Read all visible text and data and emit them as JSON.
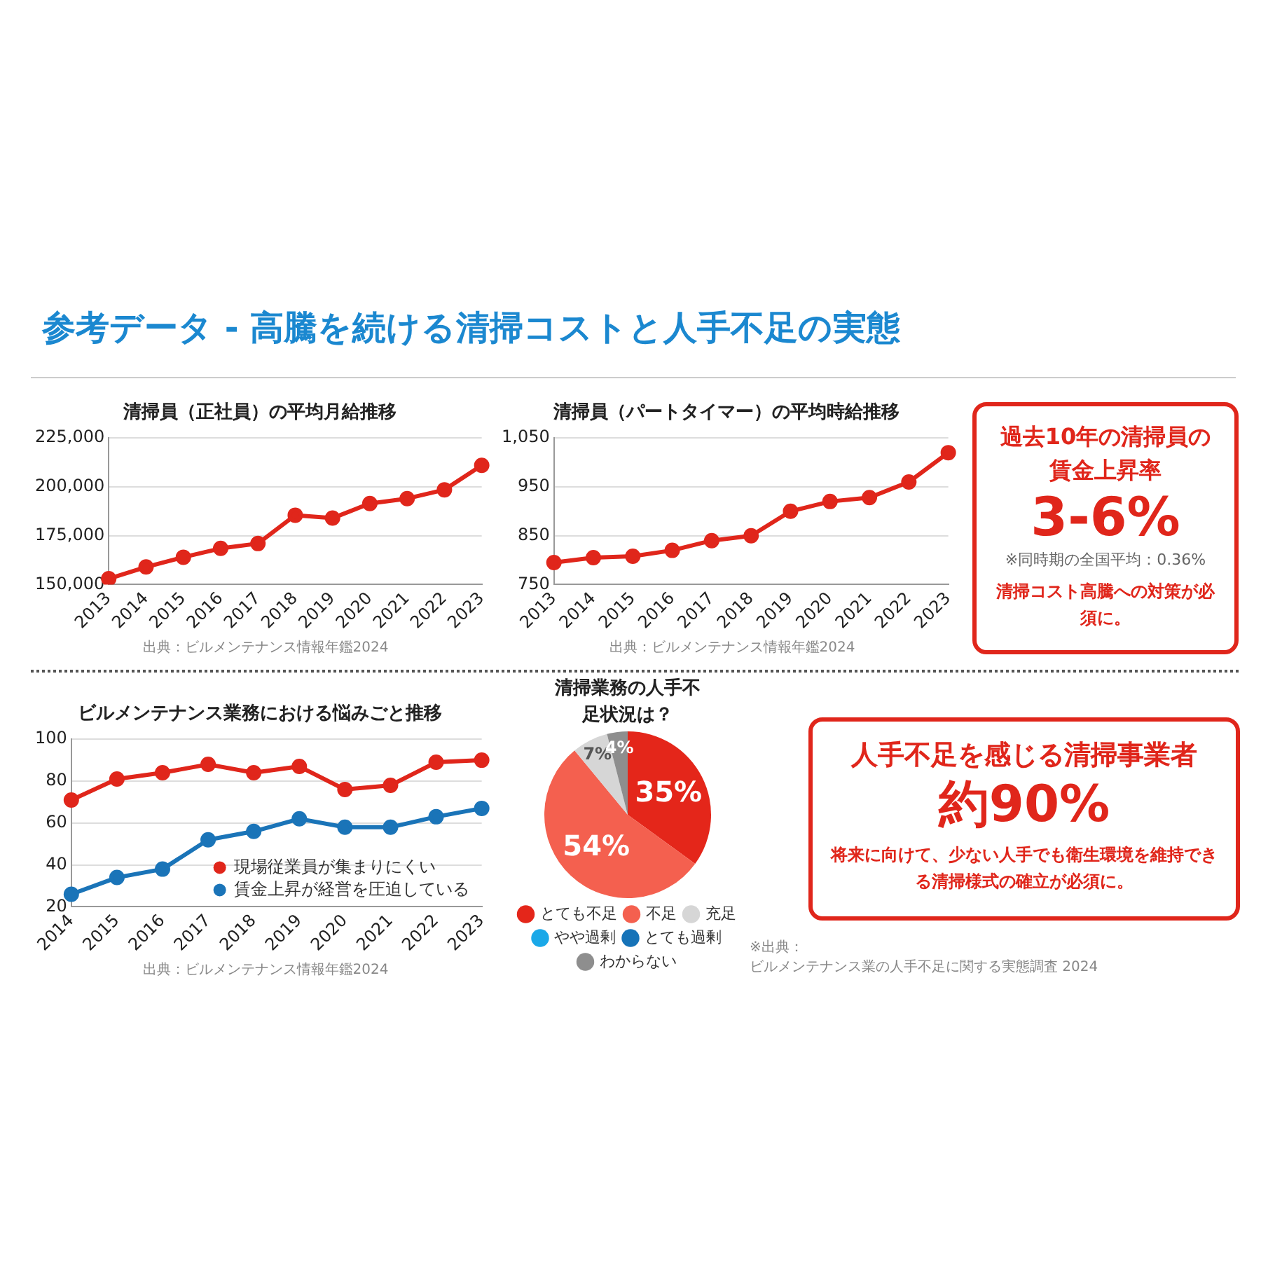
{
  "chart_data": [
    {
      "type": "other",
      "title": "参考データ - 高騰を続ける清掃コストと人手不足の実態"
    },
    {
      "type": "line",
      "title": "清掃員（正社員）の平均月給推移",
      "categories": [
        "2013",
        "2014",
        "2015",
        "2016",
        "2017",
        "2018",
        "2019",
        "2020",
        "2021",
        "2022",
        "2023"
      ],
      "series": [
        {
          "color": "#e0261b",
          "values": [
            153000,
            159000,
            164000,
            168500,
            171000,
            185500,
            184000,
            191500,
            194000,
            198500,
            211000
          ]
        }
      ],
      "ylim": [
        150000,
        225000
      ],
      "yticks": [
        {
          "value": 150000,
          "label": "150,000"
        },
        {
          "value": 175000,
          "label": "175,000"
        },
        {
          "value": 200000,
          "label": "200,000"
        },
        {
          "value": 225000,
          "label": "225,000"
        }
      ],
      "grid": "y",
      "marker": "circle",
      "annotations": [
        "出典：ビルメンテナンス情報年鑑2024"
      ]
    },
    {
      "type": "line",
      "title": "清掃員（パートタイマー）の平均時給推移",
      "categories": [
        "2013",
        "2014",
        "2015",
        "2016",
        "2017",
        "2018",
        "2019",
        "2020",
        "2021",
        "2022",
        "2023"
      ],
      "series": [
        {
          "color": "#e0261b",
          "values": [
            795,
            805,
            808,
            820,
            840,
            850,
            900,
            920,
            928,
            960,
            1020
          ]
        }
      ],
      "ylim": [
        750,
        1050
      ],
      "yticks": [
        750,
        850,
        950,
        {
          "value": 1050,
          "label": "1,050"
        }
      ],
      "grid": "y",
      "marker": "circle",
      "annotations": [
        "出典：ビルメンテナンス情報年鑑2024"
      ]
    },
    {
      "type": "other",
      "title": "過去10年の清掃員の賃金上昇率",
      "annotations": [
        "3-6%",
        "※同時期の全国平均：0.36%",
        "清掃コスト高騰への対策が必須に。"
      ]
    },
    {
      "type": "line",
      "title": "ビルメンテナンス業務における悩みごと推移",
      "categories": [
        "2014",
        "2015",
        "2016",
        "2017",
        "2018",
        "2019",
        "2020",
        "2021",
        "2022",
        "2023"
      ],
      "series": [
        {
          "name": "現場従業員が集まりにくい",
          "color": "#e0261b",
          "values": [
            71,
            81,
            84,
            88,
            84,
            87,
            76,
            78,
            89,
            90
          ]
        },
        {
          "name": "賃金上昇が経営を圧迫している",
          "color": "#1a74b8",
          "values": [
            26,
            34,
            38,
            52,
            56,
            62,
            58,
            58,
            63,
            67
          ]
        }
      ],
      "ylim": [
        20,
        100
      ],
      "yticks": [
        20,
        40,
        60,
        80,
        100
      ],
      "grid": "y",
      "marker": "circle",
      "legend": "bottom right",
      "annotations": [
        "出典：ビルメンテナンス情報年鑑2024"
      ]
    },
    {
      "type": "pie",
      "title": "清掃業務の人手不足状況は？",
      "categories": [
        "とても不足",
        "不足",
        "充足",
        "やや過剰",
        "とても過剰",
        "わからない"
      ],
      "values": [
        35,
        54,
        7,
        0,
        0,
        4
      ],
      "colors": [
        "#e4261a",
        "#f4604f",
        "#d6d6d6",
        "#1aa8e8",
        "#1673b8",
        "#8e8e8e"
      ],
      "value_labels": [
        "35%",
        "54%",
        "7%",
        null,
        null,
        "4%"
      ],
      "legend": "bottom",
      "annotations": [
        "※出典：",
        "ビルメンテナンス業の人手不足に関する実態調査 2024"
      ]
    },
    {
      "type": "other",
      "title": "人手不足を感じる清掃事業者",
      "annotations": [
        "約90%",
        "将来に向けて、少ない人手でも衛生環境を維持できる清掃様式の確立が必須に。"
      ]
    }
  ]
}
